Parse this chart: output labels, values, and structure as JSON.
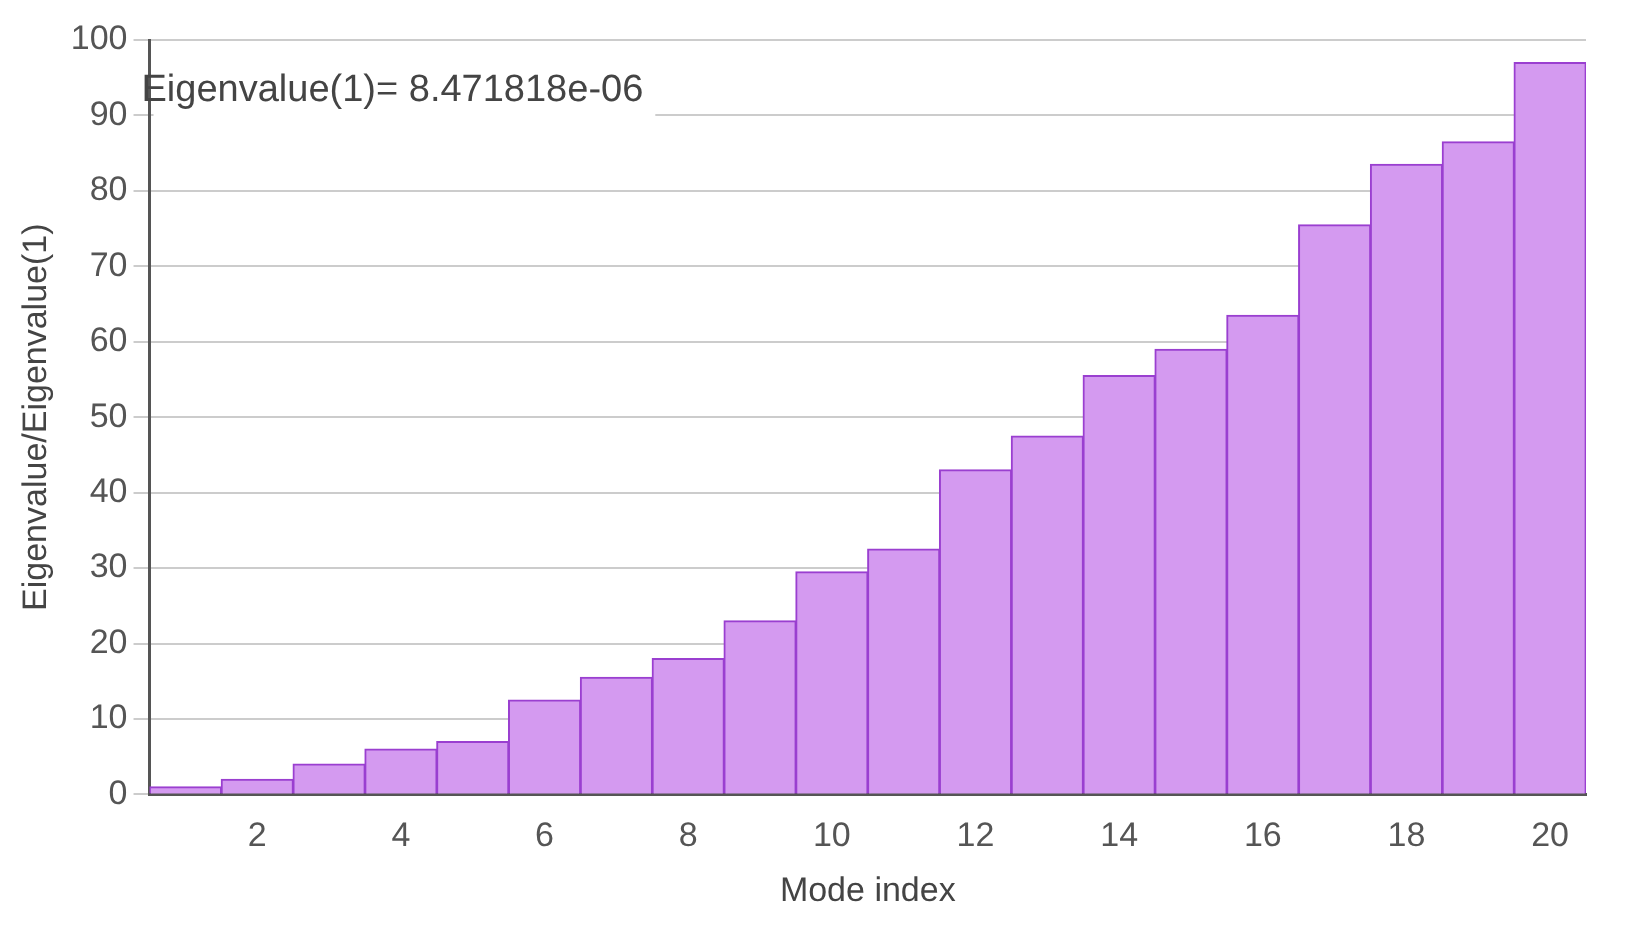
{
  "chart_data": {
    "type": "bar",
    "xlabel": "Mode index",
    "ylabel": "Eigenvalue/Eigenvalue(1)",
    "annotations": [
      "Eigenvalue(1)= 8.471818e-06"
    ],
    "x": [
      1,
      2,
      3,
      4,
      5,
      6,
      7,
      8,
      9,
      10,
      11,
      12,
      13,
      14,
      15,
      16,
      17,
      18,
      19,
      20
    ],
    "values": [
      1,
      2,
      4,
      6,
      7,
      12.5,
      15.5,
      18,
      23,
      29.5,
      32.5,
      43,
      47.5,
      55.5,
      59,
      63.5,
      75.5,
      83.5,
      86.5,
      97
    ],
    "color": "#d49af0",
    "xlim": [
      0.5,
      20.5
    ],
    "xticks": [
      2,
      4,
      6,
      8,
      10,
      12,
      14,
      16,
      18,
      20
    ],
    "ylim": [
      0,
      100
    ],
    "yticks": [
      0,
      10,
      20,
      30,
      40,
      50,
      60,
      70,
      80,
      90,
      100
    ],
    "grid": "y",
    "legend": false
  }
}
